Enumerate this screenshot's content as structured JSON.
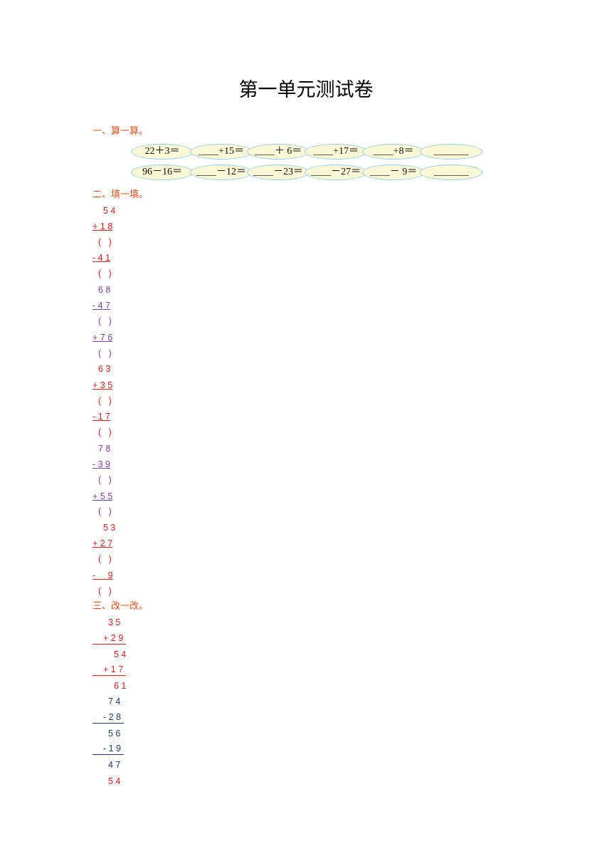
{
  "title": "第一单元测试卷",
  "sections": [
    {
      "heading": "一、算一算。",
      "rows": [
        [
          "22＋3＝",
          "____+15＝",
          "____＋ 6＝",
          "____+17＝",
          "____+8＝",
          "_______"
        ],
        [
          "96－16＝",
          "____－12＝",
          "____－23＝",
          "____－27＝",
          "____－ 9＝",
          "_______"
        ]
      ]
    },
    {
      "heading": "二、填一填。",
      "lines": [
        "5 4",
        "+ 1 8",
        "(   )",
        "- 4 1",
        "(   )",
        "6 8",
        "- 4 7",
        "(   )",
        "+ 7 6",
        "(   )",
        "6 3",
        "+ 3 5",
        "(   )",
        "- 1 7",
        "(   )",
        "7 8",
        "- 3 9",
        "(   )",
        "+ 5 5",
        "(   )",
        "5 3",
        "+ 2 7",
        "(   )",
        "-     9",
        "(   )"
      ]
    },
    {
      "heading": "三、改一改。",
      "lines": [
        "3 5",
        "+ 2 9",
        "5 4",
        "+ 1 7",
        "6 1",
        "7 4",
        "- 2 8",
        "5 6",
        "- 1 9",
        "4 7",
        "5 4"
      ]
    }
  ]
}
